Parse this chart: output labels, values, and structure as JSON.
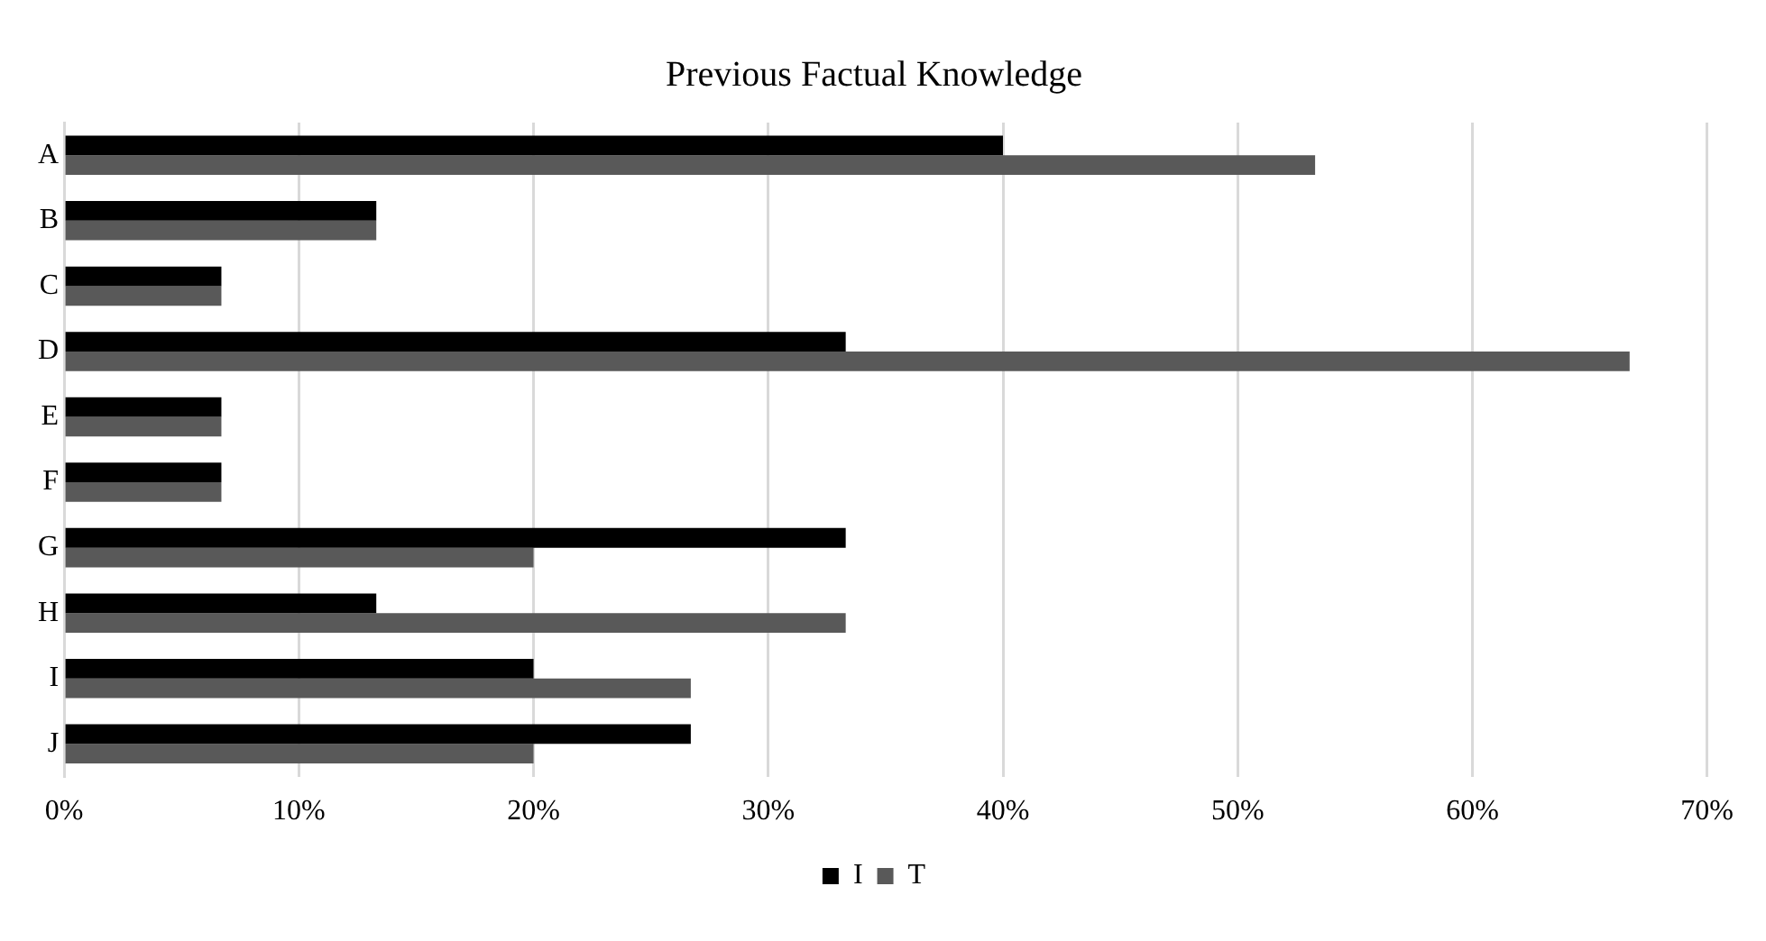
{
  "chart_data": {
    "type": "bar",
    "orientation": "horizontal",
    "title": "Previous Factual Knowledge",
    "categories": [
      "A",
      "B",
      "C",
      "D",
      "E",
      "F",
      "G",
      "H",
      "I",
      "J"
    ],
    "series": [
      {
        "name": "I",
        "color": "#000000",
        "values": [
          40,
          13.3,
          6.7,
          33.3,
          6.7,
          6.7,
          33.3,
          13.3,
          20,
          26.7
        ]
      },
      {
        "name": "T",
        "color": "#595959",
        "values": [
          53.3,
          13.3,
          6.7,
          66.7,
          6.7,
          6.7,
          20,
          33.3,
          26.7,
          20
        ]
      }
    ],
    "xlim": [
      0,
      70
    ],
    "xticks": [
      {
        "value": 0,
        "label": "0%"
      },
      {
        "value": 10,
        "label": "10%"
      },
      {
        "value": 20,
        "label": "20%"
      },
      {
        "value": 30,
        "label": "30%"
      },
      {
        "value": 40,
        "label": "40%"
      },
      {
        "value": 50,
        "label": "50%"
      },
      {
        "value": 60,
        "label": "60%"
      },
      {
        "value": 70,
        "label": "70%"
      }
    ],
    "grid": "x",
    "legend": "bottom"
  }
}
